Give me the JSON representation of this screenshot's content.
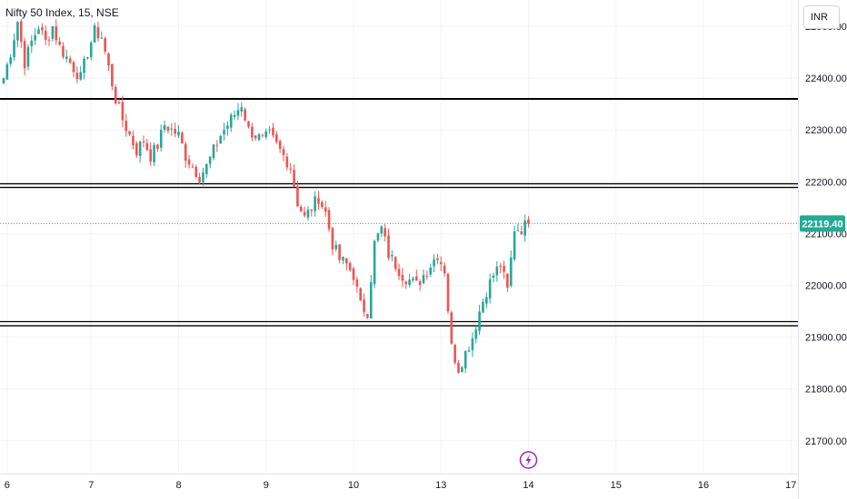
{
  "chart_data": {
    "type": "candlestick",
    "title": "Nifty 50 Index, 15, NSE",
    "currency": "INR",
    "y_ticks": [
      22500,
      22400,
      22300,
      22200,
      22100,
      22000,
      21900,
      21800,
      21700
    ],
    "y_tick_labels": [
      "22500.00",
      "22400.00",
      "22300.00",
      "22200.00",
      "22100.00",
      "22000.00",
      "21900.00",
      "21800.00",
      "21700.00"
    ],
    "ylim": [
      21670,
      22560
    ],
    "x_ticks": [
      {
        "label": "6",
        "bar": 1
      },
      {
        "label": "7",
        "bar": 25
      },
      {
        "label": "8",
        "bar": 50
      },
      {
        "label": "9",
        "bar": 75
      },
      {
        "label": "10",
        "bar": 100
      },
      {
        "label": "13",
        "bar": 125
      },
      {
        "label": "14",
        "bar": 150
      },
      {
        "label": "15",
        "bar": 175
      },
      {
        "label": "16",
        "bar": 200
      },
      {
        "label": "17",
        "bar": 225
      }
    ],
    "last_price": 22119.4,
    "last_price_label": "22119.40",
    "colors": {
      "up": "#26a69a",
      "down": "#ef5350",
      "level_line": "#000000",
      "last_price": "#22ab94",
      "event_icon": "#9c27b0"
    },
    "horizontal_levels": [
      {
        "value": 22360
      },
      {
        "value": 22196
      },
      {
        "value": 22189
      },
      {
        "value": 21930
      },
      {
        "value": 21922
      }
    ],
    "event_marker": {
      "icon": "lightning-icon",
      "bar": 150
    },
    "anchors": [
      [
        0,
        22400
      ],
      [
        2,
        22450
      ],
      [
        4,
        22510
      ],
      [
        6,
        22430
      ],
      [
        8,
        22470
      ],
      [
        10,
        22500
      ],
      [
        12,
        22470
      ],
      [
        14,
        22500
      ],
      [
        16,
        22460
      ],
      [
        18,
        22440
      ],
      [
        20,
        22420
      ],
      [
        22,
        22400
      ],
      [
        24,
        22450
      ],
      [
        26,
        22490
      ],
      [
        28,
        22480
      ],
      [
        30,
        22420
      ],
      [
        32,
        22360
      ],
      [
        34,
        22320
      ],
      [
        36,
        22290
      ],
      [
        38,
        22260
      ],
      [
        40,
        22280
      ],
      [
        42,
        22250
      ],
      [
        44,
        22270
      ],
      [
        46,
        22310
      ],
      [
        48,
        22300
      ],
      [
        50,
        22290
      ],
      [
        52,
        22250
      ],
      [
        54,
        22230
      ],
      [
        56,
        22210
      ],
      [
        58,
        22230
      ],
      [
        60,
        22260
      ],
      [
        62,
        22290
      ],
      [
        64,
        22310
      ],
      [
        66,
        22330
      ],
      [
        68,
        22350
      ],
      [
        70,
        22300
      ],
      [
        72,
        22290
      ],
      [
        74,
        22280
      ],
      [
        76,
        22290
      ],
      [
        78,
        22270
      ],
      [
        80,
        22250
      ],
      [
        82,
        22230
      ],
      [
        84,
        22160
      ],
      [
        86,
        22130
      ],
      [
        88,
        22150
      ],
      [
        90,
        22170
      ],
      [
        92,
        22140
      ],
      [
        94,
        22080
      ],
      [
        96,
        22050
      ],
      [
        98,
        22040
      ],
      [
        100,
        22020
      ],
      [
        102,
        21960
      ],
      [
        104,
        21950
      ],
      [
        106,
        22080
      ],
      [
        108,
        22110
      ],
      [
        110,
        22060
      ],
      [
        112,
        22040
      ],
      [
        114,
        22020
      ],
      [
        116,
        22010
      ],
      [
        118,
        22000
      ],
      [
        120,
        22020
      ],
      [
        122,
        22040
      ],
      [
        124,
        22060
      ],
      [
        126,
        22030
      ],
      [
        128,
        21880
      ],
      [
        130,
        21840
      ],
      [
        132,
        21870
      ],
      [
        134,
        21900
      ],
      [
        136,
        21950
      ],
      [
        138,
        21990
      ],
      [
        140,
        22020
      ],
      [
        142,
        22040
      ],
      [
        144,
        21990
      ],
      [
        146,
        22110
      ],
      [
        148,
        22110
      ],
      [
        150,
        22119.4
      ]
    ]
  }
}
